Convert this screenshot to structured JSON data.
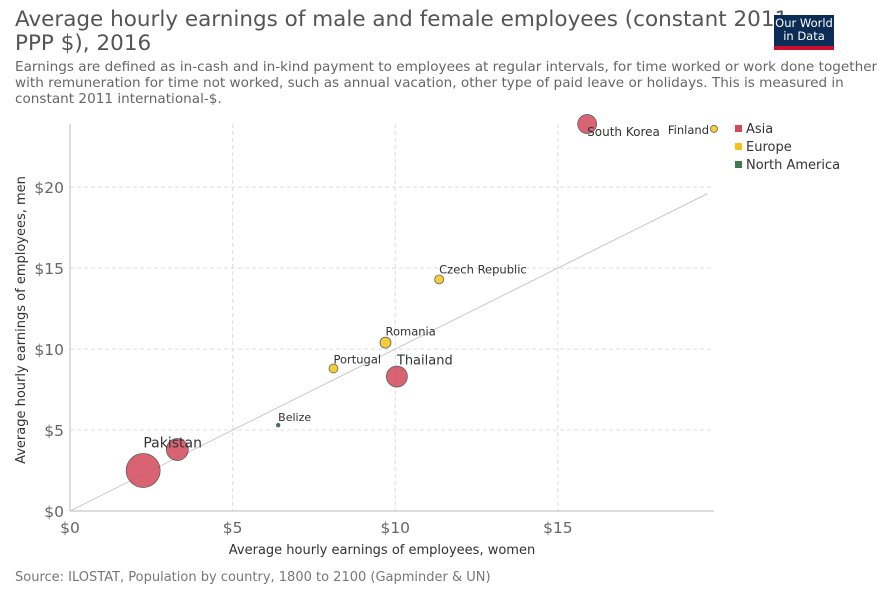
{
  "title_lines": [
    "Average hourly earnings of male and female employees (constant 2011",
    "PPP $), 2016"
  ],
  "subtitle_lines": [
    "Earnings are defined as in-cash and in-kind payment to employees at regular intervals, for time worked or work done together",
    "with remuneration for time not worked, such as annual vacation, other type of paid leave or holidays. This is measured in",
    "constant 2011 international-$."
  ],
  "logo_lines": [
    "Our World",
    "in Data"
  ],
  "source": "Source: ILOSTAT, Population by country, 1800 to 2100 (Gapminder & UN)",
  "chart_data": {
    "type": "scatter",
    "xlabel": "Average hourly earnings of employees, women",
    "ylabel": "Average hourly earnings of employees, men",
    "xlim": [
      0,
      19.8
    ],
    "ylim": [
      0,
      23.9
    ],
    "x_ticks": [
      0,
      5,
      10,
      15
    ],
    "x_tick_labels": [
      "$0",
      "$5",
      "$10",
      "$15"
    ],
    "y_ticks": [
      0,
      5,
      10,
      15,
      20
    ],
    "y_tick_labels": [
      "$0",
      "$5",
      "$10",
      "$15",
      "$20"
    ],
    "grid": true,
    "legend_position": "right",
    "reference_line": "y = x",
    "colors": {
      "Asia": "#d1495b",
      "Europe": "#f2c417",
      "North America": "#3e7a4e"
    },
    "legend": [
      "Asia",
      "Europe",
      "North America"
    ],
    "points": [
      {
        "label": "",
        "region": "Asia",
        "x": 2.25,
        "y": 2.5,
        "size": 17
      },
      {
        "label": "Pakistan",
        "region": "Asia",
        "x": 3.3,
        "y": 3.8,
        "size": 11
      },
      {
        "label": "Belize",
        "region": "North America",
        "x": 6.4,
        "y": 5.3,
        "size": 2
      },
      {
        "label": "Portugal",
        "region": "Europe",
        "x": 8.1,
        "y": 8.8,
        "size": 4.5
      },
      {
        "label": "Romania",
        "region": "Europe",
        "x": 9.7,
        "y": 10.4,
        "size": 5.5
      },
      {
        "label": "Thailand",
        "region": "Asia",
        "x": 10.05,
        "y": 8.3,
        "size": 10.5
      },
      {
        "label": "Czech Republic",
        "region": "Europe",
        "x": 11.35,
        "y": 14.3,
        "size": 4.5
      },
      {
        "label": "South Korea",
        "region": "Asia",
        "x": 15.9,
        "y": 23.9,
        "size": 9.5
      },
      {
        "label": "Finland",
        "region": "Europe",
        "x": 19.8,
        "y": 23.6,
        "size": 3.5
      }
    ]
  }
}
